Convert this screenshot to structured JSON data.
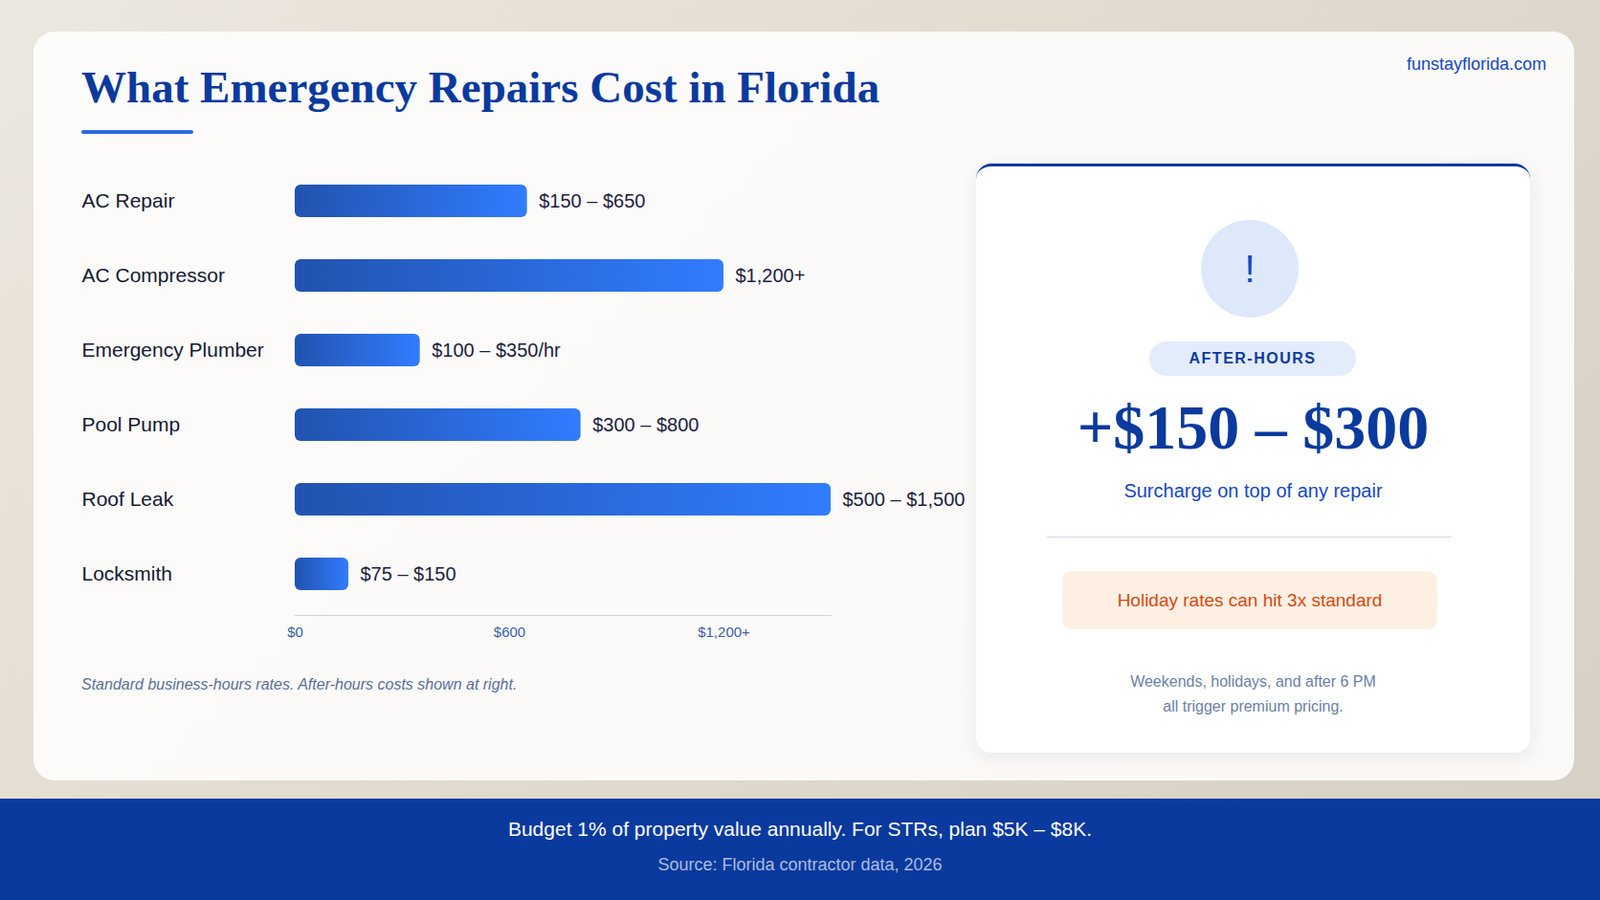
{
  "chart_data": {
    "type": "bar",
    "orientation": "horizontal",
    "title": "What Emergency Repairs Cost in Florida",
    "categories": [
      "AC Repair",
      "AC Compressor",
      "Emergency Plumber",
      "Pool Pump",
      "Roof Leak",
      "Locksmith"
    ],
    "values": [
      650,
      1200,
      350,
      800,
      1500,
      150
    ],
    "value_labels": [
      "$150 – $650",
      "$1,200+",
      "$100 – $350/hr",
      "$300 – $800",
      "$500 – $1,500",
      "$75 – $150"
    ],
    "color": "#2a6ae0",
    "xlim": [
      0,
      1500
    ],
    "xticks": [
      {
        "value": 0,
        "label": "$0"
      },
      {
        "value": 600,
        "label": "$600"
      },
      {
        "value": 1200,
        "label": "$1,200+"
      }
    ],
    "grid": false,
    "data_labels": true,
    "caption": "Standard business-hours rates. After-hours costs shown at right."
  },
  "site": "funstayflorida.com",
  "sidebar": {
    "icon": "!",
    "badge": "AFTER-HOURS",
    "headline": "+$150 – $300",
    "subhead": "Surcharge on top of any repair",
    "callout": "Holiday rates can hit 3x standard",
    "note_lines": [
      "Weekends, holidays, and after 6 PM",
      "all trigger premium pricing."
    ]
  },
  "footer": {
    "text": "Budget 1% of property value annually. For STRs, plan $5K – $8K.",
    "source": "Source: Florida contractor data, 2026"
  }
}
